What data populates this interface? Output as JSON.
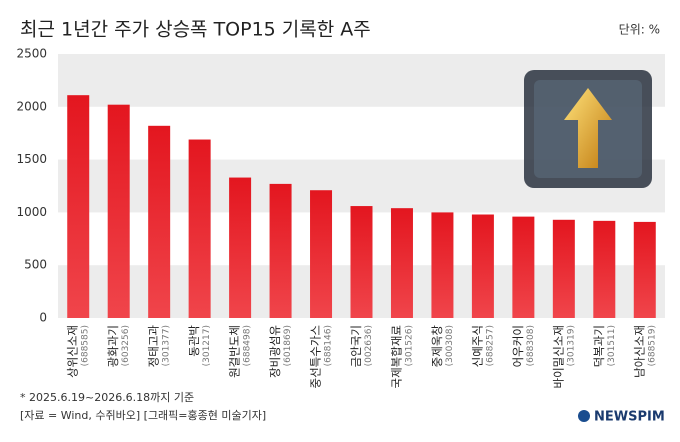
{
  "chart_data": {
    "type": "bar",
    "title": "최근 1년간 주가 상승폭 TOP15 기록한 A주",
    "unit": "단위: %",
    "categories": [
      "상위신소재",
      "광화과기",
      "정태고과",
      "동관박",
      "원걸반도체",
      "장비광섬유",
      "중선특수가스",
      "금안국기",
      "국제복합재료",
      "중제욱창",
      "신예주식",
      "어우커이",
      "바이밀신소재",
      "덕복과기",
      "남아신소재"
    ],
    "codes": [
      "(688585)",
      "(603256)",
      "(301377)",
      "(301217)",
      "(688498)",
      "(601869)",
      "(688146)",
      "(002636)",
      "(301526)",
      "(300308)",
      "(688257)",
      "(688308)",
      "(301319)",
      "(301511)",
      "(688519)"
    ],
    "values": [
      2110,
      2020,
      1820,
      1690,
      1330,
      1270,
      1210,
      1060,
      1040,
      1000,
      980,
      960,
      930,
      920,
      910
    ],
    "color": "#e3161f",
    "ylim": [
      0,
      2500
    ],
    "yticks": [
      0,
      500,
      1000,
      1500,
      2000,
      2500
    ],
    "grid": true,
    "note": "* 2025.6.19~2026.6.18까지 기준",
    "source": "[자료 = Wind, 수쥐바오] [그래픽=홍종현 미술기자]",
    "logo": "NEWSPIM"
  }
}
